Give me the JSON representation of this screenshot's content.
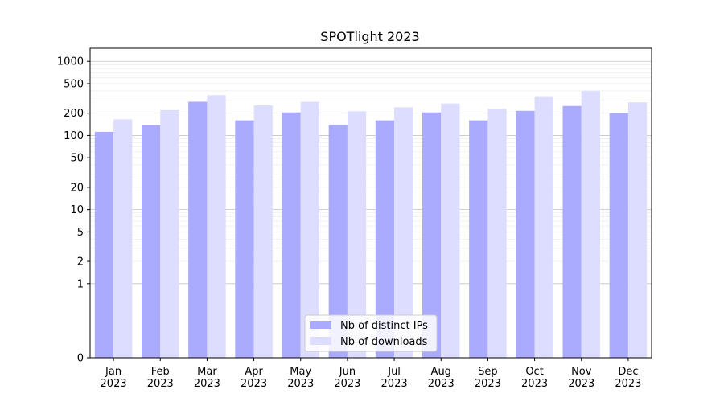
{
  "chart_data": {
    "type": "bar",
    "title": "SPOTlight 2023",
    "xlabel": "",
    "ylabel": "",
    "yscale": "symlog",
    "ylim": [
      0,
      1500
    ],
    "yticks": [
      0,
      1,
      2,
      5,
      10,
      20,
      50,
      100,
      200,
      500,
      1000
    ],
    "grid": true,
    "legend_position": "bottom-center",
    "categories": [
      "Jan\n2023",
      "Feb\n2023",
      "Mar\n2023",
      "Apr\n2023",
      "May\n2023",
      "Jun\n2023",
      "Jul\n2023",
      "Aug\n2023",
      "Sep\n2023",
      "Oct\n2023",
      "Nov\n2023",
      "Dec\n2023"
    ],
    "series": [
      {
        "name": "Nb of distinct IPs",
        "color": "#aaaaff",
        "values": [
          112,
          138,
          285,
          160,
          205,
          140,
          160,
          205,
          160,
          215,
          250,
          200
        ]
      },
      {
        "name": "Nb of downloads",
        "color": "#ddddff",
        "values": [
          165,
          220,
          350,
          255,
          285,
          212,
          240,
          270,
          230,
          330,
          400,
          280
        ]
      }
    ]
  }
}
